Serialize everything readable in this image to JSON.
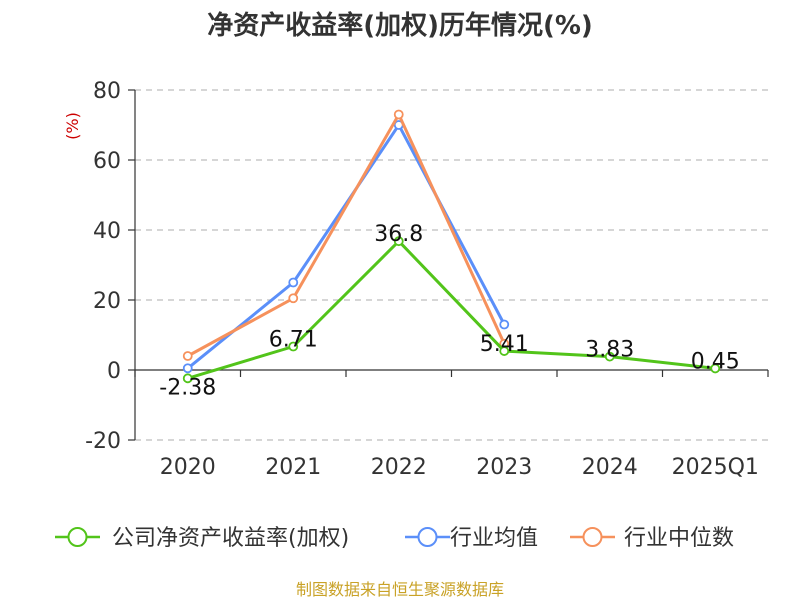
{
  "chart_data": {
    "type": "line",
    "title": "净资产收益率(加权)历年情况(%)",
    "ylabel": "(%)",
    "xlabel": "",
    "categories": [
      "2020",
      "2021",
      "2022",
      "2023",
      "2024",
      "2025Q1"
    ],
    "ylim": [
      -20,
      80
    ],
    "yticks": [
      -20,
      0,
      20,
      40,
      60,
      80
    ],
    "grid": true,
    "legend_position": "bottom",
    "series": [
      {
        "name": "公司净资产收益率(加权)",
        "color": "#52c41a",
        "values": [
          -2.38,
          6.71,
          36.8,
          5.41,
          3.83,
          0.45
        ],
        "labels": [
          "-2.38",
          "6.71",
          "36.8",
          "5.41",
          "3.83",
          "0.45"
        ],
        "show_labels": true
      },
      {
        "name": "行业均值",
        "color": "#5b8ff9",
        "values": [
          0.5,
          25,
          70,
          13,
          null,
          null
        ],
        "show_labels": false
      },
      {
        "name": "行业中位数",
        "color": "#f6915c",
        "values": [
          4,
          20.5,
          73,
          7.5,
          null,
          null
        ],
        "show_labels": false
      }
    ],
    "source": "制图数据来自恒生聚源数据库"
  }
}
